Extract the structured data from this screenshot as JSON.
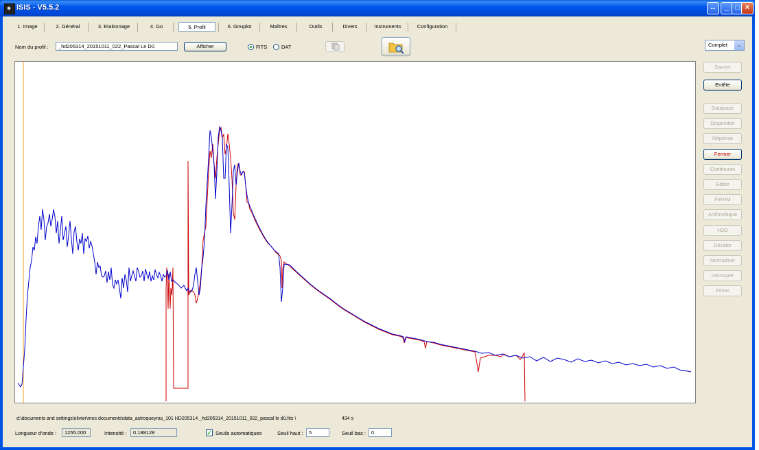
{
  "window": {
    "title": "ISIS - V5.5.2"
  },
  "tabs": [
    "1. Image",
    "2. Général",
    "3. Etalonnage",
    "4. Go",
    "5. Profil",
    "6. Gnuplot",
    "Maîtres",
    "Outils",
    "Divers",
    "Instruments",
    "Configuration"
  ],
  "selected_tab": "5. Profil",
  "profile": {
    "name_label": "Nom du profil :",
    "name_value": "_hd205314_20151011_022_Pascal Le Dû",
    "show_button": "Afficher",
    "radio_fits": "FITS",
    "radio_dat": "DAT",
    "radio_selected": "FITS"
  },
  "mode_select": "Complet",
  "side_buttons": [
    {
      "label": "Sauver",
      "enabled": false
    },
    {
      "label": "Entête",
      "enabled": true
    },
    {
      "label": "Database",
      "enabled": false
    },
    {
      "label": "Dispersion",
      "enabled": false
    },
    {
      "label": "Réponse",
      "enabled": false
    },
    {
      "label": "Fermer",
      "enabled": true
    },
    {
      "label": "Continuum",
      "enabled": false
    },
    {
      "label": "Editer",
      "enabled": false
    },
    {
      "label": "FWHM",
      "enabled": false
    },
    {
      "label": "Arithmétique",
      "enabled": false
    },
    {
      "label": "H2O",
      "enabled": false
    },
    {
      "label": "Décaler",
      "enabled": false
    },
    {
      "label": "Normaliser",
      "enabled": false
    },
    {
      "label": "Découper",
      "enabled": false
    },
    {
      "label": "Filtrer",
      "enabled": false
    }
  ],
  "status": {
    "path": "d:\\documents and settings\\olivier\\mes documents\\data_astroqueyras_101 HD205314 _hd205314_20151011_022_pascal le dû.fits \\",
    "time": "434 s",
    "wavelength_label": "Longueur d'onde :",
    "wavelength_value": "1255.000",
    "intensity_label": "Intensité :",
    "intensity_value": "0.188128",
    "auto_threshold_label": "Seuils automatiques",
    "auto_threshold_checked": true,
    "high_label": "Seuil haut :",
    "high_value": "5",
    "low_label": "Seuil bas :",
    "low_value": "0."
  },
  "colors": {
    "spectrum_blue": "#0000cc",
    "spectrum_red": "#cc0000",
    "marker_orange": "#f0a020"
  }
}
